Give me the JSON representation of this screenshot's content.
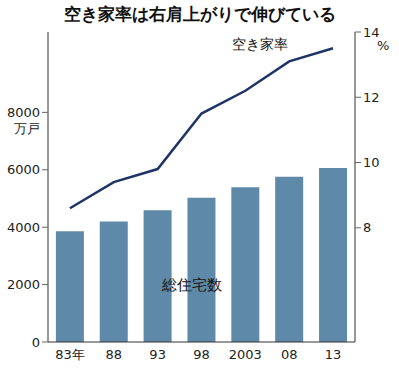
{
  "chart_data": {
    "type": "bar",
    "title": "空き家率は右肩上がりで伸びている",
    "ylabel": "万戸",
    "y2label": "%",
    "categories": [
      "83年",
      "88",
      "93",
      "98",
      "2003",
      "08",
      "13"
    ],
    "series": [
      {
        "name": "総住宅数",
        "type": "bar",
        "color": "#5f89a8",
        "values": [
          3861,
          4201,
          4588,
          5025,
          5389,
          5759,
          6063
        ]
      },
      {
        "name": "空き家率",
        "type": "line",
        "axis": "y2",
        "color": "#1f3566",
        "values": [
          8.6,
          9.4,
          9.8,
          11.5,
          12.2,
          13.1,
          13.5
        ]
      }
    ],
    "ylim": [
      0,
      10800
    ],
    "yticks": [
      0,
      2000,
      4000,
      6000,
      8000
    ],
    "y2lim": [
      4.5,
      14
    ],
    "y2ticks": [
      8,
      10,
      12,
      14
    ],
    "grid": false
  }
}
